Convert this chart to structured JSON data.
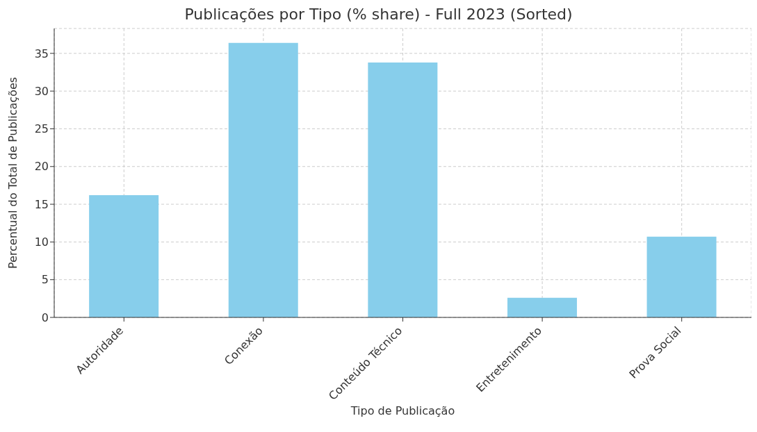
{
  "chart_data": {
    "type": "bar",
    "title": "Publicações por Tipo (% share) - Full 2023 (Sorted)",
    "xlabel": "Tipo de Publicação",
    "ylabel": "Percentual do Total de Publicações",
    "categories": [
      "Autoridade",
      "Conexão",
      "Conteúdo Técnico",
      "Entretenimento",
      "Prova Social"
    ],
    "values": [
      16.2,
      36.4,
      33.8,
      2.6,
      10.7
    ],
    "color": "#87ceeb",
    "ylim": [
      0,
      38.3
    ],
    "yticks": [
      0,
      5,
      10,
      15,
      20,
      25,
      30,
      35
    ],
    "grid": true
  }
}
